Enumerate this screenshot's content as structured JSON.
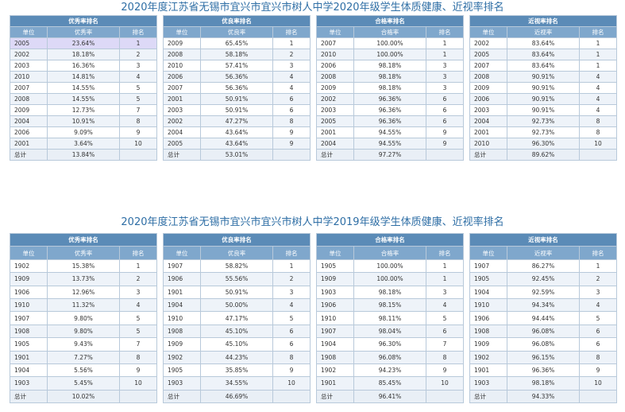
{
  "sections": [
    {
      "title": "2020年度江苏省无锡市宜兴市宜兴市树人中学2020年级学生体质健康、近视率排名",
      "tables": [
        {
          "group": "优秀率排名",
          "cols": [
            "单位",
            "优秀率",
            "排名"
          ],
          "rows": [
            [
              "2005",
              "23.64%",
              "1"
            ],
            [
              "2002",
              "18.18%",
              "2"
            ],
            [
              "2003",
              "16.36%",
              "3"
            ],
            [
              "2010",
              "14.81%",
              "4"
            ],
            [
              "2007",
              "14.55%",
              "5"
            ],
            [
              "2008",
              "14.55%",
              "5"
            ],
            [
              "2009",
              "12.73%",
              "7"
            ],
            [
              "2004",
              "10.91%",
              "8"
            ],
            [
              "2006",
              "9.09%",
              "9"
            ],
            [
              "2001",
              "3.64%",
              "10"
            ]
          ],
          "total": [
            "总计",
            "13.84%",
            ""
          ]
        },
        {
          "group": "优良率排名",
          "cols": [
            "单位",
            "优良率",
            "排名"
          ],
          "rows": [
            [
              "2009",
              "65.45%",
              "1"
            ],
            [
              "2008",
              "58.18%",
              "2"
            ],
            [
              "2010",
              "57.41%",
              "3"
            ],
            [
              "2006",
              "56.36%",
              "4"
            ],
            [
              "2007",
              "56.36%",
              "4"
            ],
            [
              "2001",
              "50.91%",
              "6"
            ],
            [
              "2003",
              "50.91%",
              "6"
            ],
            [
              "2002",
              "47.27%",
              "8"
            ],
            [
              "2004",
              "43.64%",
              "9"
            ],
            [
              "2005",
              "43.64%",
              "9"
            ]
          ],
          "total": [
            "总计",
            "53.01%",
            ""
          ]
        },
        {
          "group": "合格率排名",
          "cols": [
            "单位",
            "合格率",
            "排名"
          ],
          "rows": [
            [
              "2007",
              "100.00%",
              "1"
            ],
            [
              "2010",
              "100.00%",
              "1"
            ],
            [
              "2006",
              "98.18%",
              "3"
            ],
            [
              "2008",
              "98.18%",
              "3"
            ],
            [
              "2009",
              "98.18%",
              "3"
            ],
            [
              "2002",
              "96.36%",
              "6"
            ],
            [
              "2003",
              "96.36%",
              "6"
            ],
            [
              "2005",
              "96.36%",
              "6"
            ],
            [
              "2001",
              "94.55%",
              "9"
            ],
            [
              "2004",
              "94.55%",
              "9"
            ]
          ],
          "total": [
            "总计",
            "97.27%",
            ""
          ]
        },
        {
          "group": "近视率排名",
          "cols": [
            "单位",
            "近视率",
            "排名"
          ],
          "rows": [
            [
              "2002",
              "83.64%",
              "1"
            ],
            [
              "2005",
              "83.64%",
              "1"
            ],
            [
              "2007",
              "83.64%",
              "1"
            ],
            [
              "2008",
              "90.91%",
              "4"
            ],
            [
              "2009",
              "90.91%",
              "4"
            ],
            [
              "2006",
              "90.91%",
              "4"
            ],
            [
              "2003",
              "90.91%",
              "4"
            ],
            [
              "2004",
              "92.73%",
              "8"
            ],
            [
              "2001",
              "92.73%",
              "8"
            ],
            [
              "2010",
              "96.30%",
              "10"
            ]
          ],
          "total": [
            "总计",
            "89.62%",
            ""
          ]
        }
      ]
    },
    {
      "title": "2020年度江苏省无锡市宜兴市宜兴市树人中学2019年级学生体质健康、近视率排名",
      "tables": [
        {
          "group": "优秀率排名",
          "cols": [
            "单位",
            "优秀率",
            "排名"
          ],
          "rows": [
            [
              "1902",
              "15.38%",
              "1"
            ],
            [
              "1909",
              "13.73%",
              "2"
            ],
            [
              "1906",
              "12.96%",
              "3"
            ],
            [
              "1910",
              "11.32%",
              "4"
            ],
            [
              "1907",
              "9.80%",
              "5"
            ],
            [
              "1908",
              "9.80%",
              "5"
            ],
            [
              "1905",
              "9.43%",
              "7"
            ],
            [
              "1901",
              "7.27%",
              "8"
            ],
            [
              "1904",
              "5.56%",
              "9"
            ],
            [
              "1903",
              "5.45%",
              "10"
            ]
          ],
          "total": [
            "总计",
            "10.02%",
            ""
          ]
        },
        {
          "group": "优良率排名",
          "cols": [
            "单位",
            "优良率",
            "排名"
          ],
          "rows": [
            [
              "1907",
              "58.82%",
              "1"
            ],
            [
              "1906",
              "55.56%",
              "2"
            ],
            [
              "1901",
              "50.91%",
              "3"
            ],
            [
              "1904",
              "50.00%",
              "4"
            ],
            [
              "1910",
              "47.17%",
              "5"
            ],
            [
              "1908",
              "45.10%",
              "6"
            ],
            [
              "1909",
              "45.10%",
              "6"
            ],
            [
              "1902",
              "44.23%",
              "8"
            ],
            [
              "1905",
              "35.85%",
              "9"
            ],
            [
              "1903",
              "34.55%",
              "10"
            ]
          ],
          "total": [
            "总计",
            "46.69%",
            ""
          ]
        },
        {
          "group": "合格率排名",
          "cols": [
            "单位",
            "合格率",
            "排名"
          ],
          "rows": [
            [
              "1905",
              "100.00%",
              "1"
            ],
            [
              "1909",
              "100.00%",
              "1"
            ],
            [
              "1903",
              "98.18%",
              "3"
            ],
            [
              "1906",
              "98.15%",
              "4"
            ],
            [
              "1910",
              "98.11%",
              "5"
            ],
            [
              "1907",
              "98.04%",
              "6"
            ],
            [
              "1904",
              "96.30%",
              "7"
            ],
            [
              "1908",
              "96.08%",
              "8"
            ],
            [
              "1902",
              "94.23%",
              "9"
            ],
            [
              "1901",
              "85.45%",
              "10"
            ]
          ],
          "total": [
            "总计",
            "96.41%",
            ""
          ]
        },
        {
          "group": "近视率排名",
          "cols": [
            "单位",
            "近视率",
            "排名"
          ],
          "rows": [
            [
              "1907",
              "86.27%",
              "1"
            ],
            [
              "1905",
              "92.45%",
              "2"
            ],
            [
              "1904",
              "92.59%",
              "3"
            ],
            [
              "1910",
              "94.34%",
              "4"
            ],
            [
              "1906",
              "94.44%",
              "5"
            ],
            [
              "1908",
              "96.08%",
              "6"
            ],
            [
              "1909",
              "96.08%",
              "6"
            ],
            [
              "1902",
              "96.15%",
              "8"
            ],
            [
              "1901",
              "96.36%",
              "9"
            ],
            [
              "1903",
              "98.18%",
              "10"
            ]
          ],
          "total": [
            "总计",
            "94.33%",
            ""
          ]
        }
      ]
    }
  ]
}
